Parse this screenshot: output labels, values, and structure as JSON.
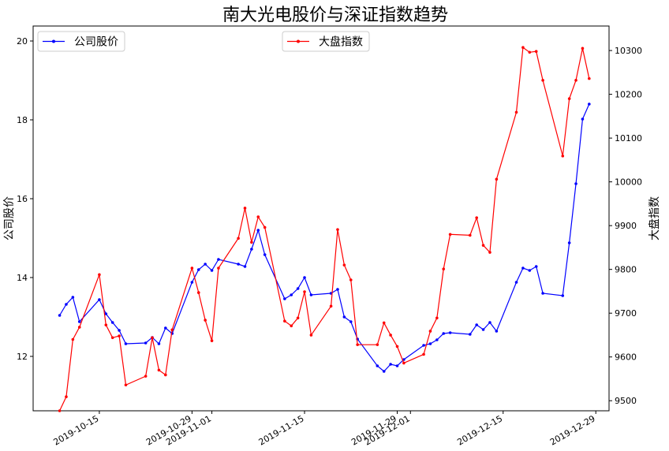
{
  "chart_data": {
    "type": "line",
    "title": "南大光电股价与深证指数趋势",
    "ylabel": "公司股价",
    "y2label": "大盘指数",
    "x": [
      "2019-10-09",
      "2019-10-10",
      "2019-10-11",
      "2019-10-12",
      "2019-10-15",
      "2019-10-16",
      "2019-10-17",
      "2019-10-18",
      "2019-10-19",
      "2019-10-22",
      "2019-10-23",
      "2019-10-24",
      "2019-10-25",
      "2019-10-26",
      "2019-10-29",
      "2019-10-30",
      "2019-10-31",
      "2019-11-01",
      "2019-11-02",
      "2019-11-05",
      "2019-11-06",
      "2019-11-07",
      "2019-11-08",
      "2019-11-09",
      "2019-11-12",
      "2019-11-13",
      "2019-11-14",
      "2019-11-15",
      "2019-11-16",
      "2019-11-19",
      "2019-11-20",
      "2019-11-21",
      "2019-11-22",
      "2019-11-23",
      "2019-11-26",
      "2019-11-27",
      "2019-11-28",
      "2019-11-29",
      "2019-11-30",
      "2019-12-03",
      "2019-12-04",
      "2019-12-05",
      "2019-12-06",
      "2019-12-07",
      "2019-12-10",
      "2019-12-11",
      "2019-12-12",
      "2019-12-13",
      "2019-12-14",
      "2019-12-17",
      "2019-12-18",
      "2019-12-19",
      "2019-12-20",
      "2019-12-21",
      "2019-12-24",
      "2019-12-25",
      "2019-12-26",
      "2019-12-27",
      "2019-12-28"
    ],
    "series": [
      {
        "name": "公司股价",
        "color": "#0000ff",
        "axis": "y",
        "legend": "upper left",
        "values": [
          13.04,
          13.32,
          13.5,
          12.88,
          13.44,
          13.08,
          12.86,
          12.66,
          12.32,
          12.34,
          12.48,
          12.32,
          12.72,
          12.58,
          13.88,
          14.2,
          14.34,
          14.18,
          14.46,
          14.34,
          14.28,
          14.72,
          15.2,
          14.58,
          13.46,
          13.56,
          13.72,
          14.0,
          13.56,
          13.6,
          13.7,
          13.0,
          12.88,
          12.44,
          11.76,
          11.62,
          11.8,
          11.76,
          11.92,
          12.28,
          12.32,
          12.42,
          12.58,
          12.6,
          12.56,
          12.8,
          12.68,
          12.86,
          12.64,
          13.88,
          14.24,
          14.18,
          14.28,
          13.6,
          13.54,
          14.88,
          16.38,
          18.02,
          18.4
        ]
      },
      {
        "name": "大盘指数",
        "color": "#ff0000",
        "axis": "y2",
        "legend": "upper center",
        "values": [
          9477,
          9509,
          9640,
          9668,
          9788,
          9673,
          9644,
          9648,
          9536,
          9556,
          9644,
          9570,
          9559,
          9662,
          9803,
          9747,
          9684,
          9637,
          9803,
          9871,
          9940,
          9862,
          9920,
          9896,
          9682,
          9671,
          9689,
          9749,
          9650,
          9716,
          9891,
          9810,
          9776,
          9628,
          9628,
          9678,
          9650,
          9624,
          9586,
          9606,
          9659,
          9689,
          9801,
          9880,
          9878,
          9918,
          9855,
          9839,
          10006,
          10159,
          10307,
          10296,
          10298,
          10232,
          10059,
          10190,
          10232,
          10305,
          10236
        ]
      }
    ],
    "xlim": [
      "2019-10-05",
      "2019-12-31"
    ],
    "xticks": [
      "2019-10-15",
      "2019-10-29",
      "2019-11-01",
      "2019-11-15",
      "2019-11-29",
      "2019-12-01",
      "2019-12-15",
      "2019-12-29"
    ],
    "ylim": [
      10.62,
      20.38
    ],
    "yticks": [
      12,
      14,
      16,
      18,
      20
    ],
    "y2lim": [
      9477,
      10356
    ],
    "y2ticks": [
      9500,
      9600,
      9700,
      9800,
      9900,
      10000,
      10100,
      10200,
      10300
    ]
  }
}
